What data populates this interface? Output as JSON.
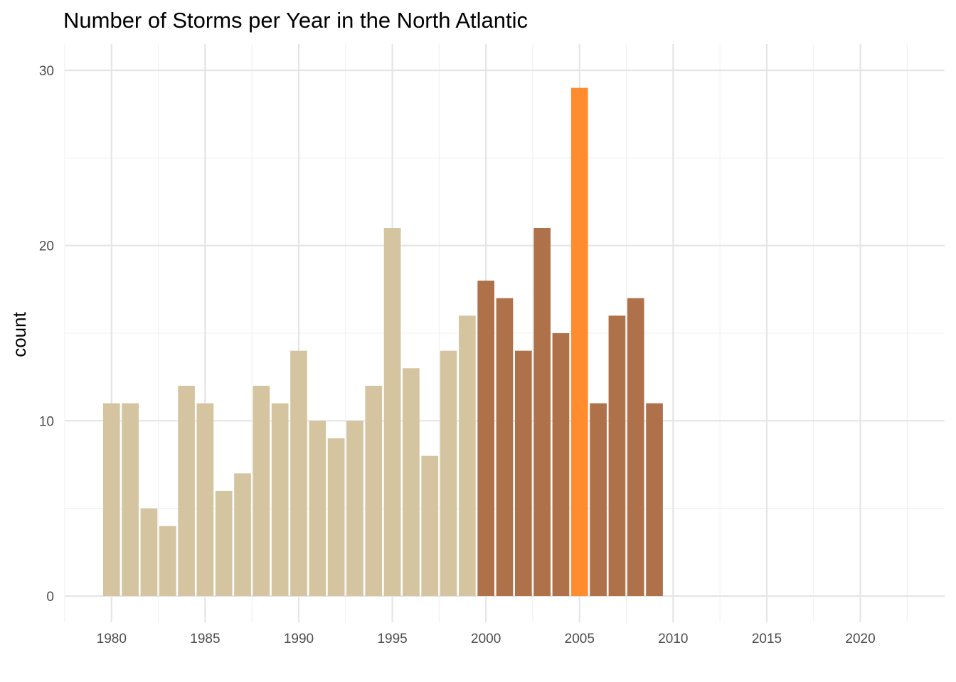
{
  "chart_data": {
    "type": "bar",
    "title": "Number of Storms per Year in the North Atlantic",
    "xlabel": "",
    "ylabel": "count",
    "x": [
      1980,
      1981,
      1982,
      1983,
      1984,
      1985,
      1986,
      1987,
      1988,
      1989,
      1990,
      1991,
      1992,
      1993,
      1994,
      1995,
      1996,
      1997,
      1998,
      1999,
      2000,
      2001,
      2002,
      2003,
      2004,
      2005,
      2006,
      2007,
      2008,
      2009
    ],
    "values": [
      11,
      11,
      5,
      4,
      12,
      11,
      6,
      7,
      12,
      11,
      14,
      10,
      9,
      10,
      12,
      21,
      13,
      8,
      14,
      16,
      18,
      17,
      14,
      21,
      15,
      29,
      11,
      16,
      17,
      11
    ],
    "xlim": [
      1977.5,
      2024.5
    ],
    "ylim": [
      -1.5,
      31.5
    ],
    "x_ticks": [
      1980,
      1985,
      1990,
      1995,
      2000,
      2005,
      2010,
      2015,
      2020
    ],
    "y_ticks": [
      0,
      10,
      20,
      30
    ],
    "grid": true,
    "legend": "none",
    "colors": {
      "before_2000": "#d4c5a0",
      "from_2000": "#ae714a",
      "highlight_2005": "#ff8c2e"
    }
  }
}
